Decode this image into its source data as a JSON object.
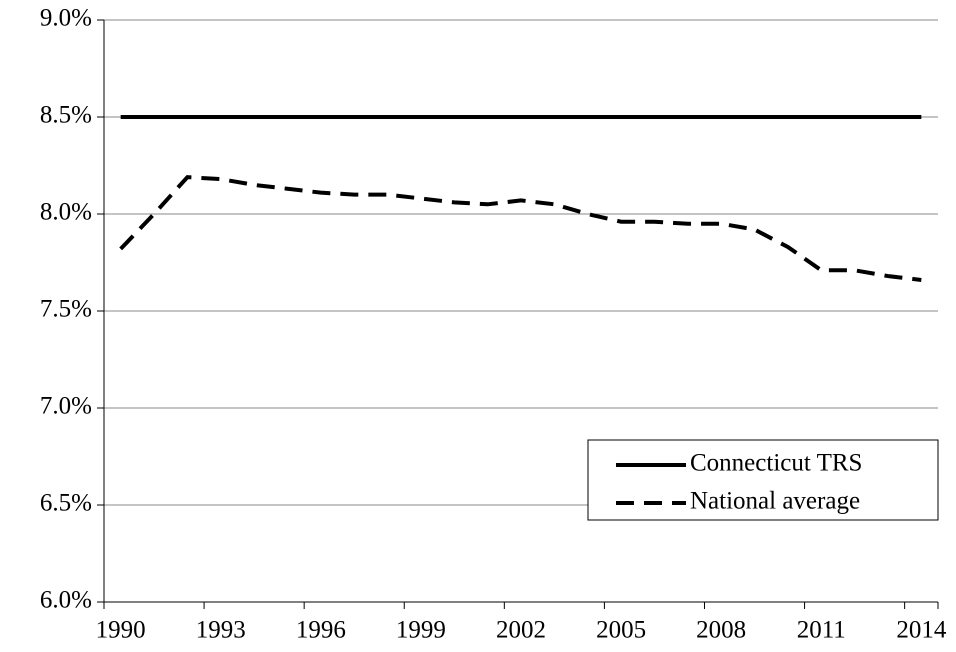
{
  "chart_data": {
    "type": "line",
    "categories": [
      "1990",
      null,
      null,
      "1993",
      null,
      null,
      "1996",
      null,
      null,
      "1999",
      null,
      null,
      "2002",
      null,
      null,
      "2005",
      null,
      null,
      "2008",
      null,
      null,
      "2011",
      null,
      null,
      "2014"
    ],
    "series": [
      {
        "name": "Connecticut TRS",
        "color": "#000000",
        "dash": "solid",
        "values": [
          8.5,
          8.5,
          8.5,
          8.5,
          8.5,
          8.5,
          8.5,
          8.5,
          8.5,
          8.5,
          8.5,
          8.5,
          8.5,
          8.5,
          8.5,
          8.5,
          8.5,
          8.5,
          8.5,
          8.5,
          8.5,
          8.5,
          8.5,
          8.5,
          8.5
        ]
      },
      {
        "name": "National average",
        "color": "#000000",
        "dash": "dashed",
        "values": [
          7.82,
          8.0,
          8.19,
          8.18,
          8.15,
          8.13,
          8.11,
          8.1,
          8.1,
          8.08,
          8.06,
          8.05,
          8.07,
          8.05,
          8.0,
          7.96,
          7.96,
          7.95,
          7.95,
          7.92,
          7.83,
          7.71,
          7.71,
          7.68,
          7.66
        ]
      }
    ],
    "ylim": [
      6,
      9
    ],
    "yticks": [
      {
        "value": 6,
        "label": "6.0%"
      },
      {
        "value": 6.5,
        "label": "6.5%"
      },
      {
        "value": 7,
        "label": "7.0%"
      },
      {
        "value": 7.5,
        "label": "7.5%"
      },
      {
        "value": 8,
        "label": "8.0%"
      },
      {
        "value": 8.5,
        "label": "8.5%"
      },
      {
        "value": 9,
        "label": "9.0%"
      }
    ],
    "grid": true,
    "legend": "lower right"
  }
}
